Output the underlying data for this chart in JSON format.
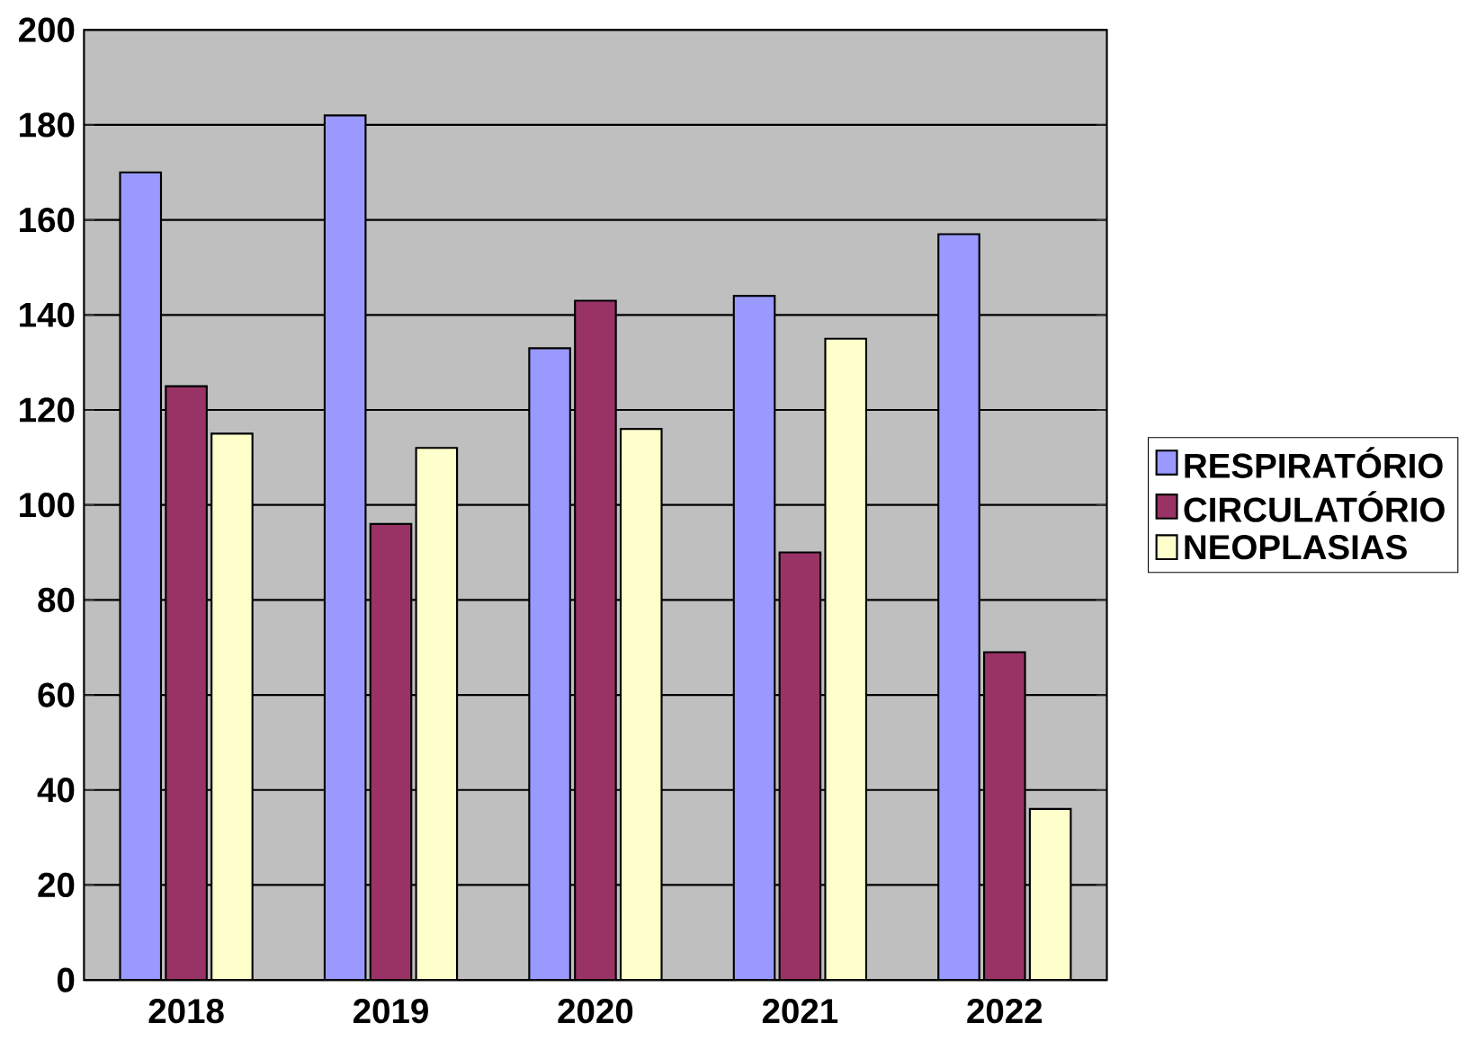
{
  "chart_data": {
    "type": "bar",
    "categories": [
      "2018",
      "2019",
      "2020",
      "2021",
      "2022"
    ],
    "series": [
      {
        "name": "RESPIRATÓRIO",
        "color": "#9999ff",
        "values": [
          170,
          182,
          133,
          144,
          157
        ]
      },
      {
        "name": "CIRCULATÓRIO",
        "color": "#993366",
        "values": [
          125,
          96,
          143,
          90,
          69
        ]
      },
      {
        "name": "NEOPLASIAS",
        "color": "#ffffcc",
        "values": [
          115,
          112,
          116,
          135,
          36
        ]
      }
    ],
    "ylim": [
      0,
      200
    ],
    "yticks": [
      0,
      20,
      40,
      60,
      80,
      100,
      120,
      140,
      160,
      180,
      200
    ],
    "grid": "y",
    "legend": "right"
  }
}
